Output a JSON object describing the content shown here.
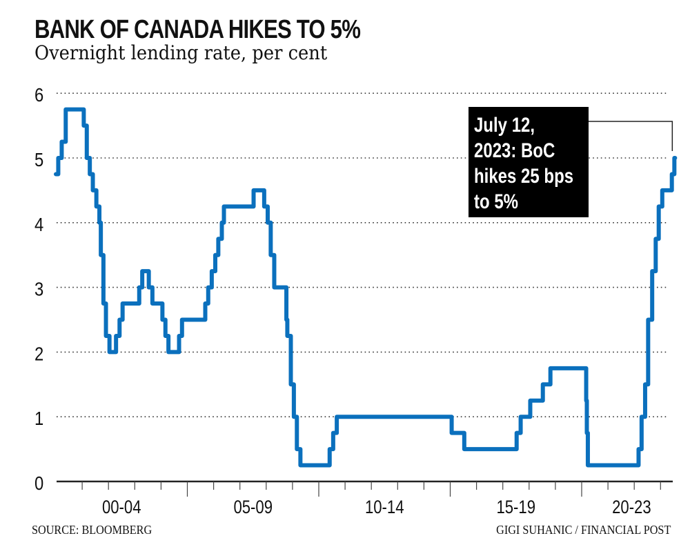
{
  "chart_data": {
    "type": "line",
    "step": true,
    "title": "BANK OF CANADA HIKES TO 5%",
    "subtitle": "Overnight lending rate, per cent",
    "xlabel": "",
    "ylabel": "",
    "ylim": [
      0,
      6
    ],
    "xlim": [
      "2000-01-01",
      "2023-12-31"
    ],
    "yticks": [
      "0",
      "1",
      "2",
      "3",
      "4",
      "5",
      "6"
    ],
    "xtick_labels": [
      {
        "label": "00-04",
        "from": 2000,
        "to": 2005
      },
      {
        "label": "05-09",
        "from": 2005,
        "to": 2010
      },
      {
        "label": "10-14",
        "from": 2010,
        "to": 2015
      },
      {
        "label": "15-19",
        "from": 2015,
        "to": 2020
      },
      {
        "label": "20-23",
        "from": 2020,
        "to": 2024
      }
    ],
    "grid": "horizontal dotted",
    "line_color": "#0b70bd",
    "series": [
      {
        "points": [
          [
            "2000-01-01",
            4.75
          ],
          [
            "2000-02-03",
            5.0
          ],
          [
            "2000-03-22",
            5.25
          ],
          [
            "2000-05-17",
            5.75
          ],
          [
            "2001-01-23",
            5.5
          ],
          [
            "2001-03-06",
            5.0
          ],
          [
            "2001-04-17",
            4.75
          ],
          [
            "2001-05-29",
            4.5
          ],
          [
            "2001-07-17",
            4.25
          ],
          [
            "2001-08-28",
            4.0
          ],
          [
            "2001-09-17",
            3.5
          ],
          [
            "2001-10-23",
            2.75
          ],
          [
            "2001-11-27",
            2.25
          ],
          [
            "2002-01-15",
            2.0
          ],
          [
            "2002-04-16",
            2.25
          ],
          [
            "2002-06-04",
            2.5
          ],
          [
            "2002-07-16",
            2.75
          ],
          [
            "2003-03-04",
            3.0
          ],
          [
            "2003-04-15",
            3.25
          ],
          [
            "2003-07-15",
            3.0
          ],
          [
            "2003-09-03",
            2.75
          ],
          [
            "2004-01-20",
            2.5
          ],
          [
            "2004-03-02",
            2.25
          ],
          [
            "2004-04-13",
            2.0
          ],
          [
            "2004-09-08",
            2.25
          ],
          [
            "2004-10-19",
            2.5
          ],
          [
            "2005-09-07",
            2.75
          ],
          [
            "2005-10-18",
            3.0
          ],
          [
            "2005-12-06",
            3.25
          ],
          [
            "2006-01-24",
            3.5
          ],
          [
            "2006-03-07",
            3.75
          ],
          [
            "2006-04-25",
            4.0
          ],
          [
            "2006-05-24",
            4.25
          ],
          [
            "2007-07-10",
            4.5
          ],
          [
            "2007-12-04",
            4.25
          ],
          [
            "2008-01-22",
            4.0
          ],
          [
            "2008-03-04",
            3.5
          ],
          [
            "2008-04-22",
            3.0
          ],
          [
            "2008-10-08",
            2.5
          ],
          [
            "2008-10-21",
            2.25
          ],
          [
            "2008-12-09",
            1.5
          ],
          [
            "2009-01-20",
            1.0
          ],
          [
            "2009-03-03",
            0.5
          ],
          [
            "2009-04-21",
            0.25
          ],
          [
            "2010-06-01",
            0.5
          ],
          [
            "2010-07-20",
            0.75
          ],
          [
            "2010-09-08",
            1.0
          ],
          [
            "2015-01-21",
            0.75
          ],
          [
            "2015-07-15",
            0.5
          ],
          [
            "2017-07-12",
            0.75
          ],
          [
            "2017-09-06",
            1.0
          ],
          [
            "2018-01-17",
            1.25
          ],
          [
            "2018-07-11",
            1.5
          ],
          [
            "2018-10-24",
            1.75
          ],
          [
            "2020-03-04",
            1.25
          ],
          [
            "2020-03-13",
            0.75
          ],
          [
            "2020-03-27",
            0.25
          ],
          [
            "2022-03-02",
            0.5
          ],
          [
            "2022-04-13",
            1.0
          ],
          [
            "2022-06-01",
            1.5
          ],
          [
            "2022-07-13",
            2.5
          ],
          [
            "2022-09-07",
            3.25
          ],
          [
            "2022-10-26",
            3.75
          ],
          [
            "2022-12-07",
            4.25
          ],
          [
            "2023-01-25",
            4.5
          ],
          [
            "2023-06-07",
            4.75
          ],
          [
            "2023-07-12",
            5.0
          ]
        ]
      }
    ],
    "annotation": {
      "lines": [
        "July 12,",
        "2023: BoC",
        "hikes 25 bps",
        "to 5%"
      ],
      "date": "2023-07-12",
      "value": 5.0
    },
    "source": "SOURCE: BLOOMBERG",
    "credit": "GIGI SUHANIC / FINANCIAL POST"
  }
}
